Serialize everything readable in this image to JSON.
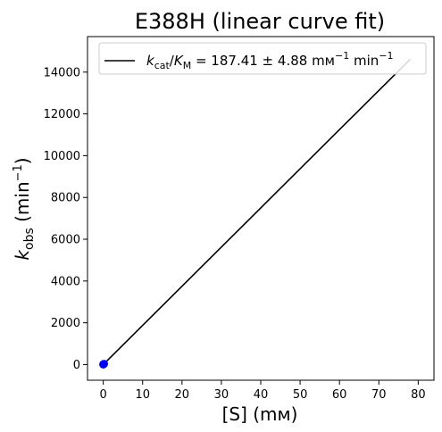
{
  "chart_data": {
    "type": "line",
    "title": "E388H (linear curve fit)",
    "xlabel": "[S] (mм)",
    "ylabel": {
      "k": "k",
      "sub": "obs",
      "units_prefix": " (min",
      "units_exp": "−1",
      "units_suffix": ")"
    },
    "xlim": [
      -4,
      84
    ],
    "ylim": [
      -750,
      15700
    ],
    "x_ticks": [
      0,
      10,
      20,
      30,
      40,
      50,
      60,
      70,
      80
    ],
    "x_tick_labels": [
      "0",
      "10",
      "20",
      "30",
      "40",
      "50",
      "60",
      "70",
      "80"
    ],
    "y_ticks": [
      0,
      2000,
      4000,
      6000,
      8000,
      10000,
      12000,
      14000
    ],
    "y_tick_labels": [
      "0",
      "2000",
      "4000",
      "6000",
      "8000",
      "10000",
      "12000",
      "14000"
    ],
    "grid": false,
    "legend_placement": "top",
    "legend": {
      "k": "k",
      "k_sub": "cat",
      "slash": "/",
      "K": "K",
      "K_sub": "M",
      "value": " = 187.41 ± 4.88 mм",
      "exp1": "−1",
      "unit2": " min",
      "exp2": "−1"
    },
    "series": [
      {
        "kind": "fit-line",
        "color": "#000000",
        "x": [
          0,
          78
        ],
        "y": [
          0,
          14620
        ]
      },
      {
        "kind": "points",
        "color": "#0000ff",
        "x": [
          0,
          0.02,
          0.05,
          0.1,
          0.2
        ],
        "y": [
          5,
          8,
          12,
          20,
          35
        ]
      }
    ]
  }
}
